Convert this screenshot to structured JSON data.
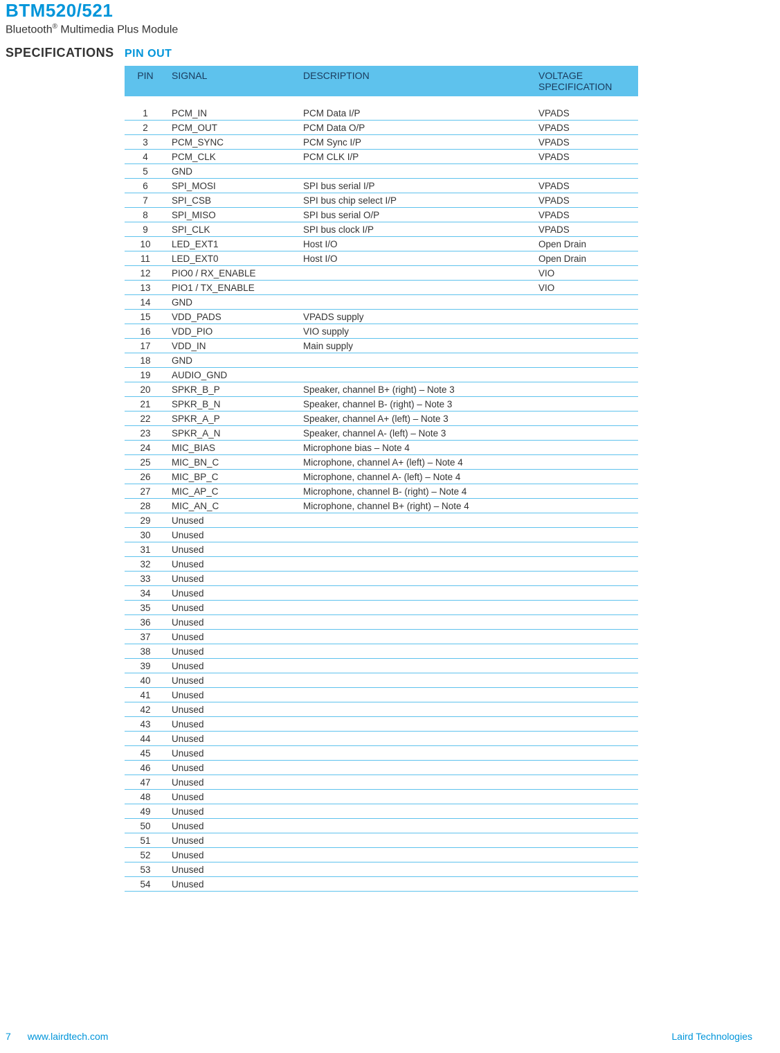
{
  "header": {
    "product_title": "BTM520/521",
    "product_subtitle_pre": "Bluetooth",
    "product_subtitle_post": " Multimedia Plus Module",
    "section_label": "SPECIFICATIONS",
    "subsection_label": "PIN OUT"
  },
  "table": {
    "columns": [
      "PIN",
      "SIGNAL",
      "DESCRIPTION",
      "VOLTAGE SPECIFICATION"
    ],
    "header_bg": "#5ec2ed",
    "header_text_color": "#1a3a5c",
    "row_border_color": "#5ec2ed",
    "body_text_color": "#333333",
    "font_size": 13.5,
    "rows": [
      {
        "pin": "1",
        "signal": "PCM_IN",
        "desc": "PCM Data I/P",
        "volt": "VPADS"
      },
      {
        "pin": "2",
        "signal": "PCM_OUT",
        "desc": "PCM Data O/P",
        "volt": "VPADS"
      },
      {
        "pin": "3",
        "signal": "PCM_SYNC",
        "desc": "PCM Sync I/P",
        "volt": "VPADS"
      },
      {
        "pin": "4",
        "signal": "PCM_CLK",
        "desc": "PCM CLK I/P",
        "volt": "VPADS"
      },
      {
        "pin": "5",
        "signal": "GND",
        "desc": "",
        "volt": ""
      },
      {
        "pin": "6",
        "signal": "SPI_MOSI",
        "desc": "SPI bus serial I/P",
        "volt": "VPADS"
      },
      {
        "pin": "7",
        "signal": "SPI_CSB",
        "desc": "SPI bus chip select I/P",
        "volt": "VPADS"
      },
      {
        "pin": "8",
        "signal": "SPI_MISO",
        "desc": "SPI bus serial O/P",
        "volt": "VPADS"
      },
      {
        "pin": "9",
        "signal": "SPI_CLK",
        "desc": "SPI bus clock I/P",
        "volt": "VPADS"
      },
      {
        "pin": "10",
        "signal": "LED_EXT1",
        "desc": "Host I/O",
        "volt": "Open Drain"
      },
      {
        "pin": "11",
        "signal": "LED_EXT0",
        "desc": "Host I/O",
        "volt": "Open Drain"
      },
      {
        "pin": "12",
        "signal": "PIO0 / RX_ENABLE",
        "desc": "",
        "volt": "VIO"
      },
      {
        "pin": "13",
        "signal": "PIO1 / TX_ENABLE",
        "desc": "",
        "volt": "VIO"
      },
      {
        "pin": "14",
        "signal": "GND",
        "desc": "",
        "volt": ""
      },
      {
        "pin": "15",
        "signal": "VDD_PADS",
        "desc": "VPADS supply",
        "volt": ""
      },
      {
        "pin": "16",
        "signal": "VDD_PIO",
        "desc": "VIO supply",
        "volt": ""
      },
      {
        "pin": "17",
        "signal": "VDD_IN",
        "desc": "Main supply",
        "volt": ""
      },
      {
        "pin": "18",
        "signal": "GND",
        "desc": "",
        "volt": ""
      },
      {
        "pin": "19",
        "signal": "AUDIO_GND",
        "desc": "",
        "volt": ""
      },
      {
        "pin": "20",
        "signal": "SPKR_B_P",
        "desc": "Speaker, channel B+ (right) – Note 3",
        "volt": ""
      },
      {
        "pin": "21",
        "signal": "SPKR_B_N",
        "desc": "Speaker, channel B- (right) – Note 3",
        "volt": ""
      },
      {
        "pin": "22",
        "signal": "SPKR_A_P",
        "desc": "Speaker, channel A+ (left) – Note 3",
        "volt": ""
      },
      {
        "pin": "23",
        "signal": "SPKR_A_N",
        "desc": "Speaker, channel A- (left) – Note 3",
        "volt": ""
      },
      {
        "pin": "24",
        "signal": "MIC_BIAS",
        "desc": "Microphone bias – Note 4",
        "volt": ""
      },
      {
        "pin": "25",
        "signal": "MIC_BN_C",
        "desc": "Microphone, channel A+ (left) – Note 4",
        "volt": ""
      },
      {
        "pin": "26",
        "signal": "MIC_BP_C",
        "desc": "Microphone, channel A- (left) – Note 4",
        "volt": ""
      },
      {
        "pin": "27",
        "signal": "MIC_AP_C",
        "desc": "Microphone, channel B- (right) – Note 4",
        "volt": ""
      },
      {
        "pin": "28",
        "signal": "MIC_AN_C",
        "desc": "Microphone, channel B+ (right) – Note 4",
        "volt": ""
      },
      {
        "pin": "29",
        "signal": "Unused",
        "desc": "",
        "volt": ""
      },
      {
        "pin": "30",
        "signal": "Unused",
        "desc": "",
        "volt": ""
      },
      {
        "pin": "31",
        "signal": "Unused",
        "desc": "",
        "volt": ""
      },
      {
        "pin": "32",
        "signal": "Unused",
        "desc": "",
        "volt": ""
      },
      {
        "pin": "33",
        "signal": "Unused",
        "desc": "",
        "volt": ""
      },
      {
        "pin": "34",
        "signal": "Unused",
        "desc": "",
        "volt": ""
      },
      {
        "pin": "35",
        "signal": "Unused",
        "desc": "",
        "volt": ""
      },
      {
        "pin": "36",
        "signal": "Unused",
        "desc": "",
        "volt": ""
      },
      {
        "pin": "37",
        "signal": "Unused",
        "desc": "",
        "volt": ""
      },
      {
        "pin": "38",
        "signal": "Unused",
        "desc": "",
        "volt": ""
      },
      {
        "pin": "39",
        "signal": "Unused",
        "desc": "",
        "volt": ""
      },
      {
        "pin": "40",
        "signal": "Unused",
        "desc": "",
        "volt": ""
      },
      {
        "pin": "41",
        "signal": "Unused",
        "desc": "",
        "volt": ""
      },
      {
        "pin": "42",
        "signal": "Unused",
        "desc": "",
        "volt": ""
      },
      {
        "pin": "43",
        "signal": "Unused",
        "desc": "",
        "volt": ""
      },
      {
        "pin": "44",
        "signal": "Unused",
        "desc": "",
        "volt": ""
      },
      {
        "pin": "45",
        "signal": "Unused",
        "desc": "",
        "volt": ""
      },
      {
        "pin": "46",
        "signal": "Unused",
        "desc": "",
        "volt": ""
      },
      {
        "pin": "47",
        "signal": "Unused",
        "desc": "",
        "volt": ""
      },
      {
        "pin": "48",
        "signal": "Unused",
        "desc": "",
        "volt": ""
      },
      {
        "pin": "49",
        "signal": "Unused",
        "desc": "",
        "volt": ""
      },
      {
        "pin": "50",
        "signal": "Unused",
        "desc": "",
        "volt": ""
      },
      {
        "pin": "51",
        "signal": "Unused",
        "desc": "",
        "volt": ""
      },
      {
        "pin": "52",
        "signal": "Unused",
        "desc": "",
        "volt": ""
      },
      {
        "pin": "53",
        "signal": "Unused",
        "desc": "",
        "volt": ""
      },
      {
        "pin": "54",
        "signal": "Unused",
        "desc": "",
        "volt": ""
      }
    ]
  },
  "footer": {
    "page_number": "7",
    "url": "www.lairdtech.com",
    "company": "Laird Technologies"
  },
  "colors": {
    "brand_blue": "#0095da",
    "header_blue": "#5ec2ed",
    "text_dark": "#333333"
  }
}
